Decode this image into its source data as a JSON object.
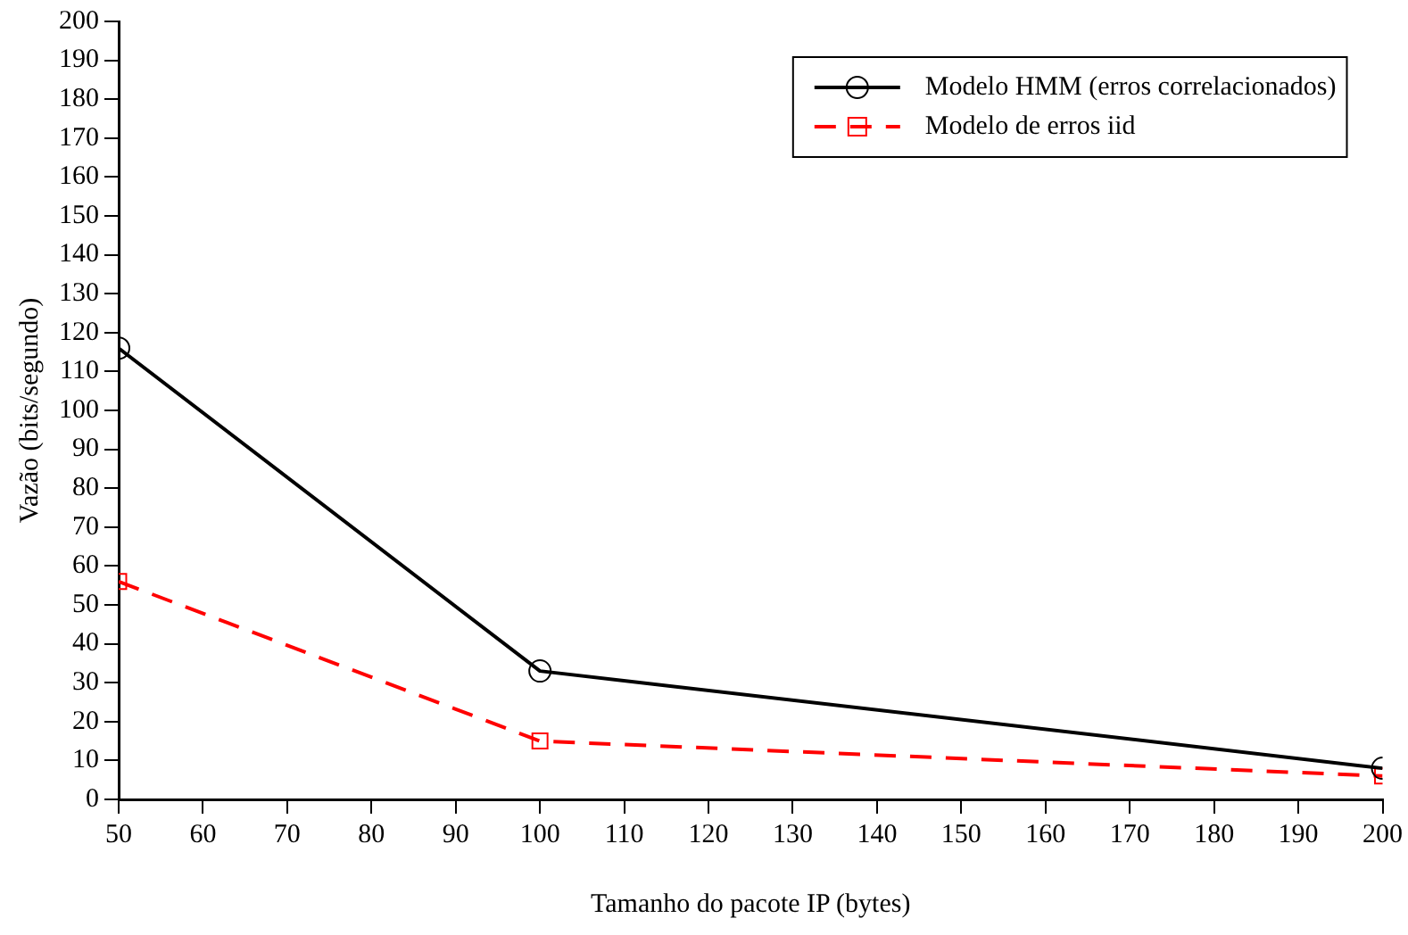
{
  "chart_data": {
    "type": "line",
    "xlabel": "Tamanho do pacote IP (bytes)",
    "ylabel": "Vazão (bits/segundo)",
    "x": [
      50,
      100,
      200
    ],
    "series": [
      {
        "name": "Modelo HMM (erros correlacionados)",
        "color": "#000000",
        "values": [
          116,
          33,
          8
        ],
        "marker": "circle",
        "line_style": "solid"
      },
      {
        "name": "Modelo de erros iid",
        "color": "#ff0000",
        "values": [
          56,
          15,
          6
        ],
        "marker": "square",
        "line_style": "dashed"
      }
    ],
    "xlim": [
      50,
      200
    ],
    "xticks": [
      50,
      60,
      70,
      80,
      90,
      100,
      110,
      120,
      130,
      140,
      150,
      160,
      170,
      180,
      190,
      200
    ],
    "ylim": [
      0,
      200
    ],
    "yticks": [
      0,
      10,
      20,
      30,
      40,
      50,
      60,
      70,
      80,
      90,
      100,
      110,
      120,
      130,
      140,
      150,
      160,
      170,
      180,
      190,
      200
    ],
    "grid": false,
    "legend": "top right"
  }
}
